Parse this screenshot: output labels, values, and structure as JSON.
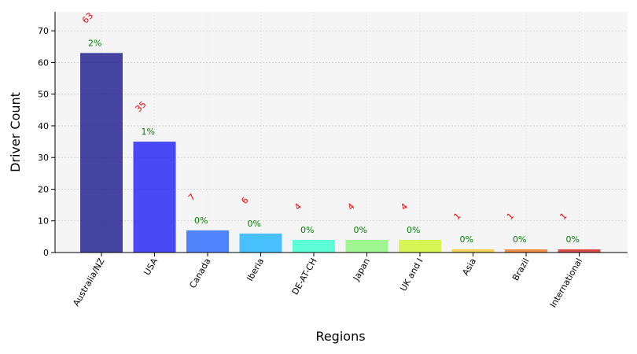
{
  "chart_data": {
    "type": "bar",
    "title": "",
    "xlabel": "Regions",
    "ylabel": "Driver Count",
    "categories": [
      "Australia/NZ",
      "USA",
      "Canada",
      "Iberia",
      "DE-AT-CH",
      "Japan",
      "UK and I",
      "Asia",
      "Brazil",
      "International"
    ],
    "values": [
      63,
      35,
      7,
      6,
      4,
      4,
      4,
      1,
      1,
      1
    ],
    "percent_labels": [
      "2%",
      "1%",
      "0%",
      "0%",
      "0%",
      "0%",
      "0%",
      "0%",
      "0%",
      "0%"
    ],
    "value_labels": [
      "63",
      "35",
      "7",
      "6",
      "4",
      "4",
      "4",
      "1",
      "1",
      "1"
    ],
    "yticks": [
      "0",
      "10",
      "20",
      "30",
      "40",
      "50",
      "60",
      "70"
    ],
    "ylim": [
      0,
      76
    ],
    "grid": true,
    "colors": {
      "bars": [
        "#1f1f8f",
        "#2323f5",
        "#2c6bff",
        "#22b4ff",
        "#3cffd2",
        "#8cf57a",
        "#d2f532",
        "#f5c832",
        "#f07a1e",
        "#d22323"
      ],
      "value_label": "#ff0000",
      "percent_label": "#008000",
      "plot_background": "#f5f5f5"
    }
  }
}
